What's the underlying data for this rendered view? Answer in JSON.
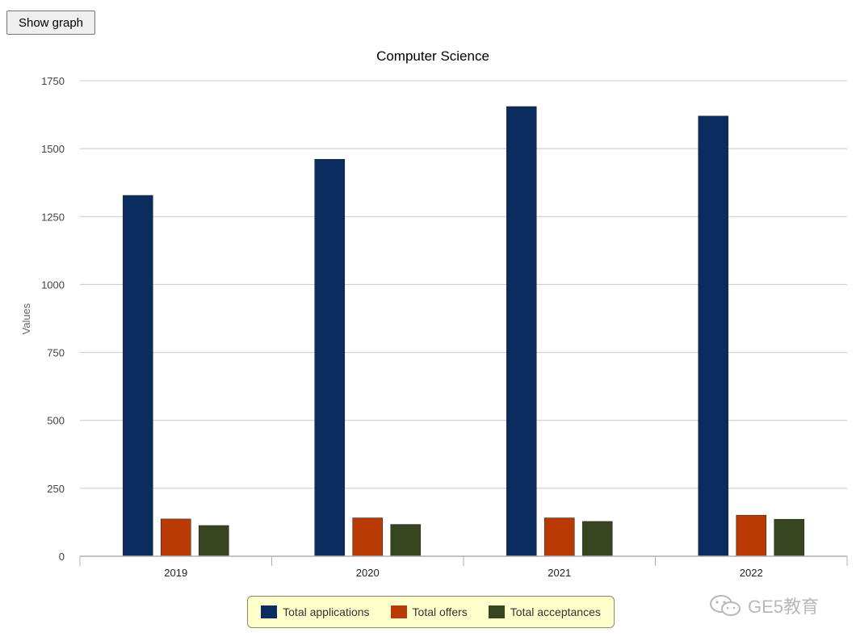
{
  "toolbar": {
    "show_graph_label": "Show graph"
  },
  "chart_data": {
    "type": "bar",
    "title": "Computer Science",
    "ylabel": "Values",
    "xlabel": "",
    "categories": [
      "2019",
      "2020",
      "2021",
      "2022"
    ],
    "ylim": [
      0,
      1750
    ],
    "yticks": [
      0,
      250,
      500,
      750,
      1000,
      1250,
      1500,
      1750
    ],
    "grid": true,
    "legend_position": "bottom-center",
    "series": [
      {
        "name": "Total applications",
        "color": "#0b2c5e",
        "values": [
          1328,
          1461,
          1655,
          1620
        ]
      },
      {
        "name": "Total offers",
        "color": "#b93a05",
        "values": [
          137,
          141,
          141,
          151
        ]
      },
      {
        "name": "Total acceptances",
        "color": "#364420",
        "values": [
          113,
          117,
          128,
          136
        ]
      }
    ]
  },
  "watermark": {
    "text": "GE5教育",
    "icon": "wechat-icon"
  }
}
